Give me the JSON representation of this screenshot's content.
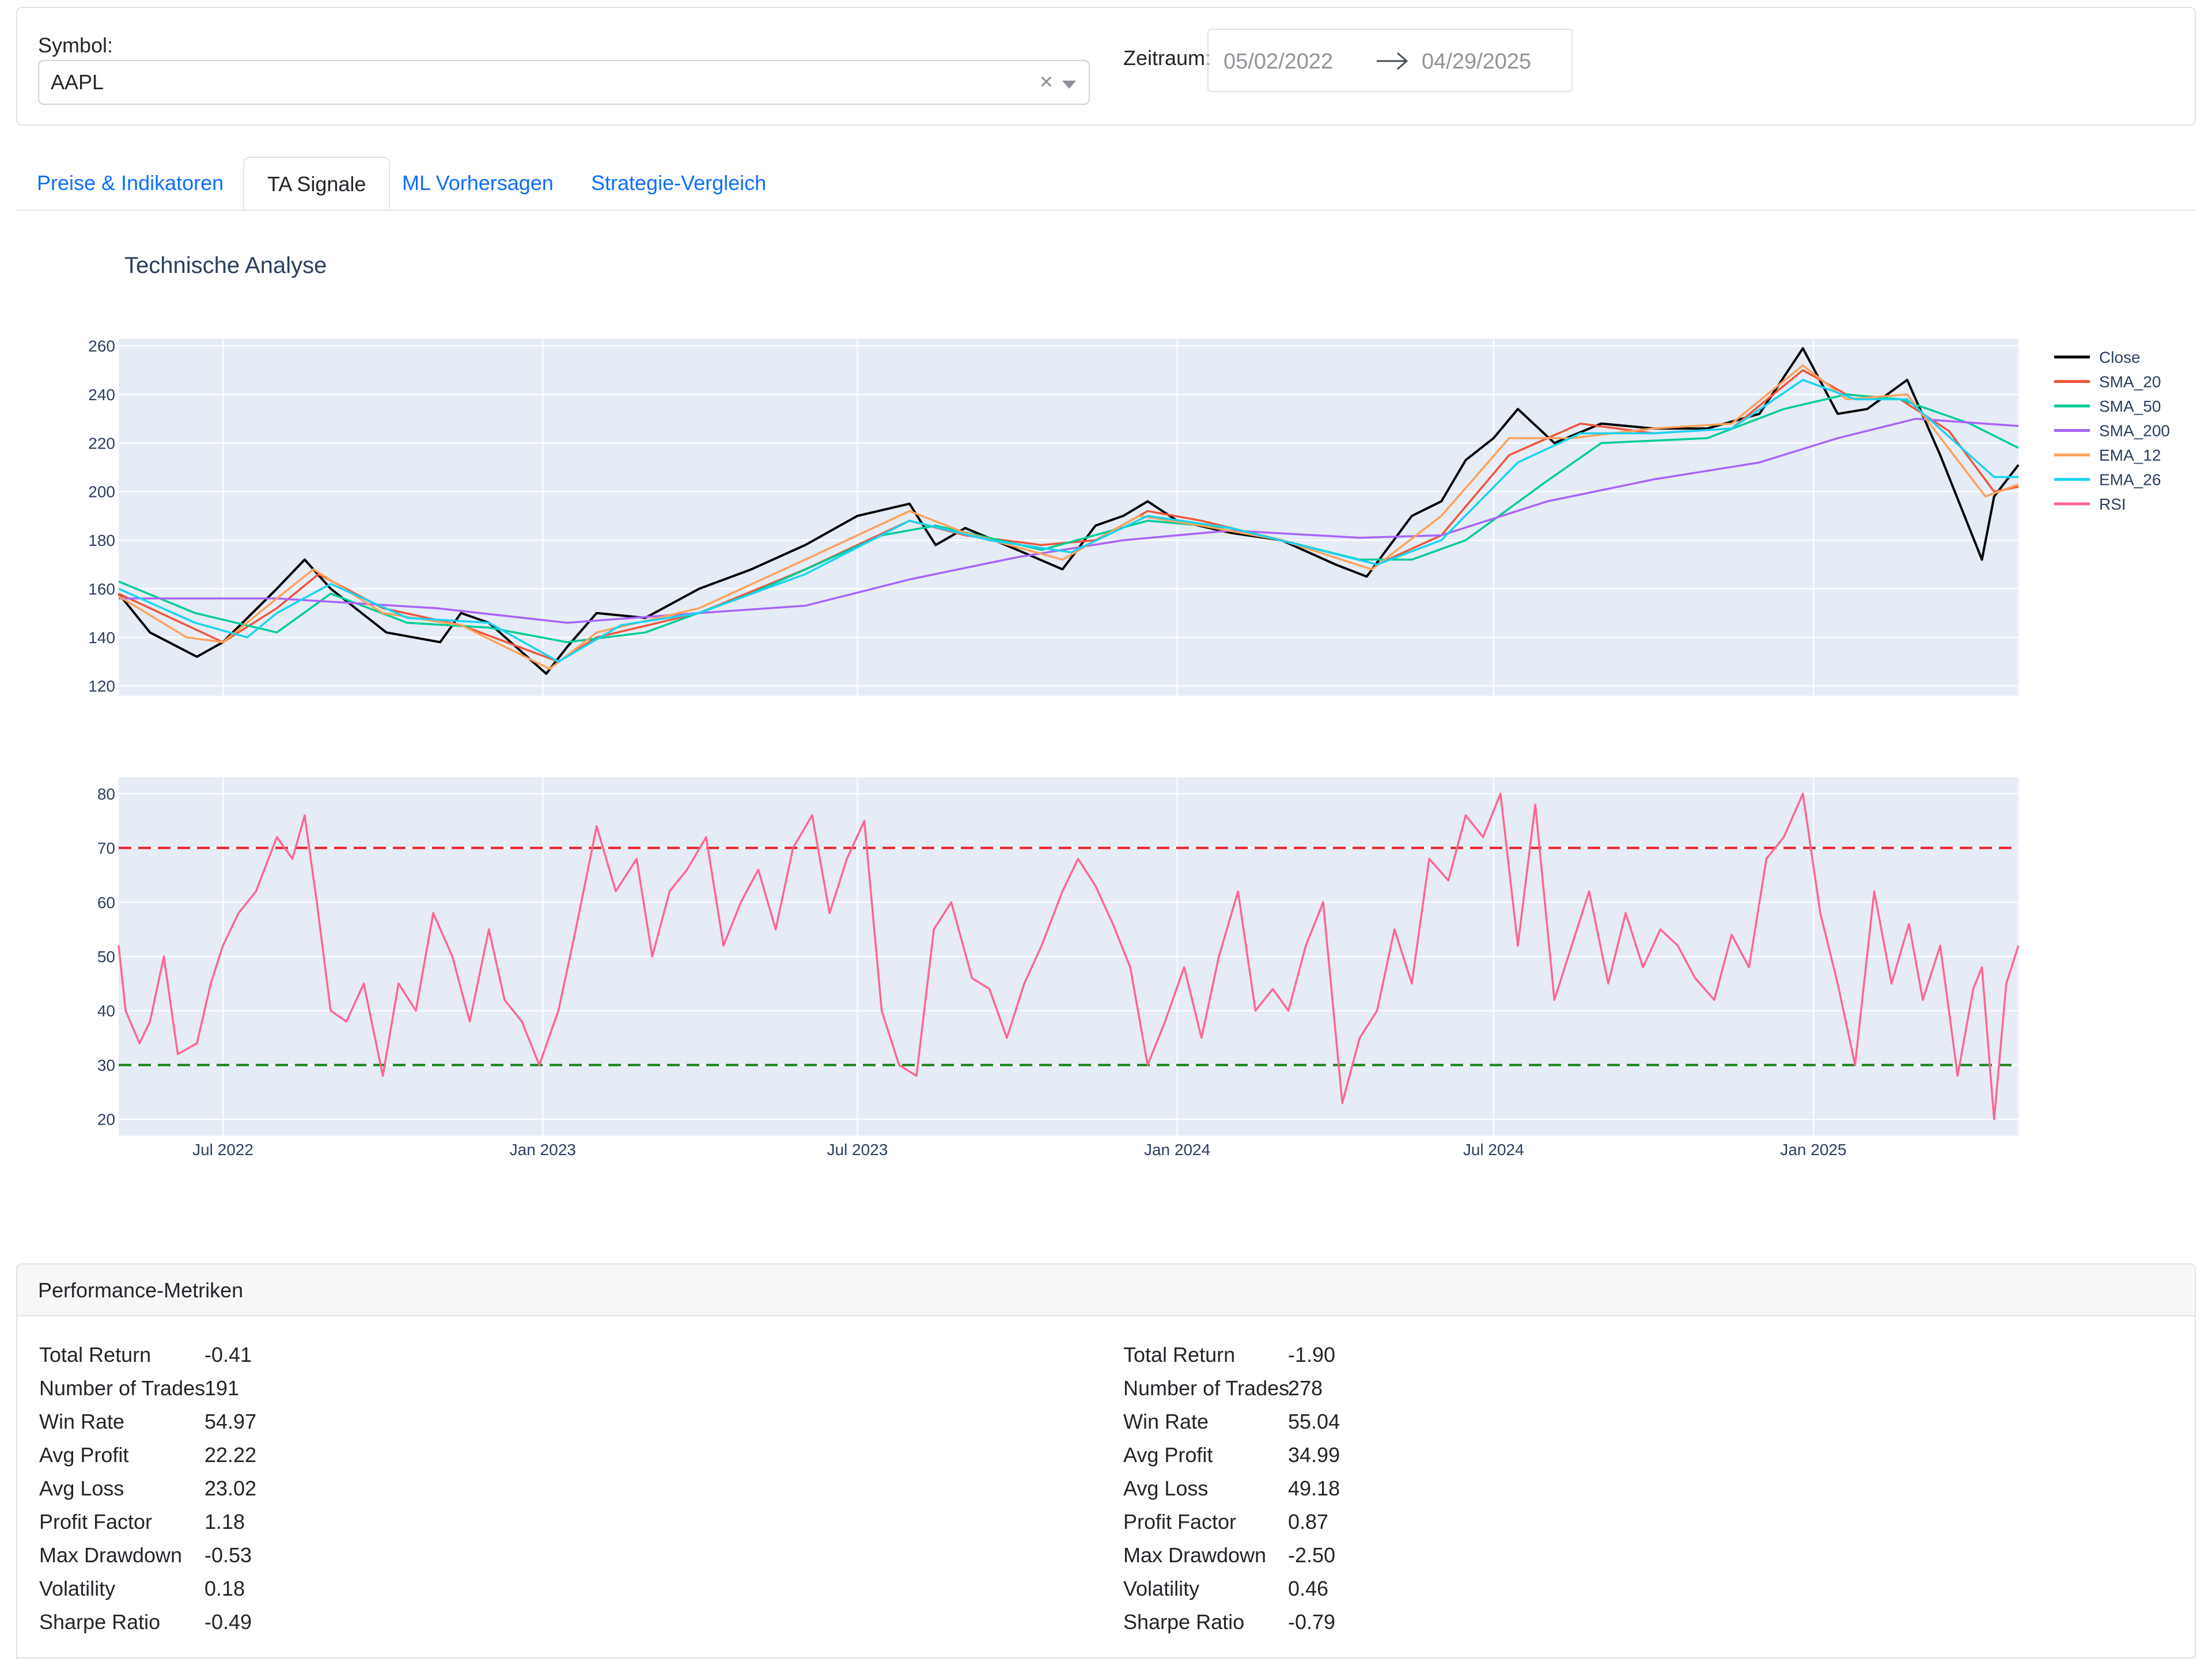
{
  "filters": {
    "symbol_label": "Symbol:",
    "symbol_value": "AAPL",
    "clear_glyph": "×",
    "period_label": "Zeitraum:",
    "start_date": "05/02/2022",
    "end_date": "04/29/2025"
  },
  "tabs": [
    {
      "label": "Preise & Indikatoren",
      "active": false
    },
    {
      "label": "TA Signale",
      "active": true
    },
    {
      "label": "ML Vorhersagen",
      "active": false
    },
    {
      "label": "Strategie-Vergleich",
      "active": false
    }
  ],
  "chart": {
    "title": "Technische Analyse"
  },
  "chart_data": [
    {
      "type": "line",
      "title": "Technische Analyse",
      "ylim": [
        116,
        263
      ],
      "yticks": [
        120,
        140,
        160,
        180,
        200,
        220,
        240,
        260
      ],
      "xlim": [
        "2022-05-02",
        "2025-04-29"
      ],
      "xticks": [
        {
          "date": "2022-07-01",
          "label": "Jul 2022"
        },
        {
          "date": "2023-01-01",
          "label": "Jan 2023"
        },
        {
          "date": "2023-07-01",
          "label": "Jul 2023"
        },
        {
          "date": "2024-01-01",
          "label": "Jan 2024"
        },
        {
          "date": "2024-07-01",
          "label": "Jul 2024"
        },
        {
          "date": "2025-01-01",
          "label": "Jan 2025"
        }
      ],
      "grid": true,
      "legend_position": "right",
      "series": [
        {
          "name": "Close",
          "color": "#000000",
          "x": [
            "2022-05-02",
            "2022-05-20",
            "2022-06-16",
            "2022-07-01",
            "2022-08-01",
            "2022-08-17",
            "2022-09-01",
            "2022-10-03",
            "2022-11-03",
            "2022-11-15",
            "2022-12-01",
            "2023-01-03",
            "2023-01-15",
            "2023-02-01",
            "2023-03-01",
            "2023-04-01",
            "2023-05-01",
            "2023-06-01",
            "2023-07-01",
            "2023-07-31",
            "2023-08-15",
            "2023-09-01",
            "2023-10-01",
            "2023-10-27",
            "2023-11-15",
            "2023-12-01",
            "2023-12-15",
            "2024-01-01",
            "2024-02-01",
            "2024-03-01",
            "2024-04-01",
            "2024-04-19",
            "2024-05-15",
            "2024-06-01",
            "2024-06-15",
            "2024-07-01",
            "2024-07-15",
            "2024-08-05",
            "2024-09-01",
            "2024-10-01",
            "2024-11-01",
            "2024-12-01",
            "2024-12-26",
            "2025-01-15",
            "2025-02-01",
            "2025-02-24",
            "2025-03-15",
            "2025-04-08",
            "2025-04-15",
            "2025-04-29"
          ],
          "y": [
            158,
            142,
            132,
            138,
            160,
            172,
            160,
            142,
            138,
            150,
            146,
            125,
            136,
            150,
            148,
            160,
            168,
            178,
            190,
            195,
            178,
            185,
            176,
            168,
            186,
            190,
            196,
            188,
            183,
            180,
            170,
            165,
            190,
            196,
            213,
            222,
            234,
            220,
            228,
            226,
            226,
            232,
            259,
            232,
            234,
            246,
            215,
            172,
            198,
            211
          ]
        },
        {
          "name": "SMA_20",
          "color": "#ef553b",
          "x": [
            "2022-05-02",
            "2022-06-01",
            "2022-07-01",
            "2022-08-01",
            "2022-08-25",
            "2022-10-01",
            "2022-11-15",
            "2023-01-10",
            "2023-02-01",
            "2023-04-01",
            "2023-06-01",
            "2023-07-31",
            "2023-09-01",
            "2023-10-15",
            "2023-11-15",
            "2023-12-15",
            "2024-01-15",
            "2024-03-01",
            "2024-04-25",
            "2024-06-01",
            "2024-07-10",
            "2024-08-20",
            "2024-10-01",
            "2024-11-15",
            "2024-12-26",
            "2025-01-20",
            "2025-02-20",
            "2025-03-20",
            "2025-04-15",
            "2025-04-29"
          ],
          "y": [
            158,
            148,
            138,
            152,
            166,
            152,
            145,
            130,
            140,
            150,
            168,
            188,
            182,
            178,
            180,
            192,
            188,
            180,
            170,
            182,
            215,
            228,
            224,
            226,
            250,
            240,
            238,
            225,
            200,
            202
          ]
        },
        {
          "name": "SMA_50",
          "color": "#00cc96",
          "x": [
            "2022-05-02",
            "2022-06-15",
            "2022-08-01",
            "2022-09-01",
            "2022-10-15",
            "2022-12-01",
            "2023-01-15",
            "2023-03-01",
            "2023-05-01",
            "2023-07-15",
            "2023-08-15",
            "2023-10-15",
            "2023-12-15",
            "2024-02-01",
            "2024-04-15",
            "2024-05-15",
            "2024-06-15",
            "2024-07-31",
            "2024-09-01",
            "2024-11-01",
            "2024-12-15",
            "2025-01-20",
            "2025-02-20",
            "2025-04-01",
            "2025-04-29"
          ],
          "y": [
            163,
            150,
            142,
            158,
            146,
            144,
            138,
            142,
            158,
            182,
            186,
            176,
            188,
            185,
            172,
            172,
            180,
            204,
            220,
            222,
            234,
            240,
            238,
            228,
            218
          ]
        },
        {
          "name": "SMA_200",
          "color": "#ab63fa",
          "x": [
            "2022-05-02",
            "2022-08-01",
            "2022-11-01",
            "2023-01-15",
            "2023-04-01",
            "2023-06-01",
            "2023-08-01",
            "2023-10-01",
            "2023-12-01",
            "2024-02-01",
            "2024-04-15",
            "2024-06-01",
            "2024-08-01",
            "2024-10-01",
            "2024-12-01",
            "2025-01-15",
            "2025-03-01",
            "2025-04-29"
          ],
          "y": [
            156,
            156,
            152,
            146,
            150,
            153,
            164,
            173,
            180,
            184,
            181,
            182,
            196,
            205,
            212,
            222,
            230,
            227
          ]
        },
        {
          "name": "EMA_12",
          "color": "#ffa15a",
          "x": [
            "2022-05-02",
            "2022-06-10",
            "2022-07-01",
            "2022-08-01",
            "2022-08-22",
            "2022-10-01",
            "2022-11-15",
            "2023-01-05",
            "2023-02-01",
            "2023-04-01",
            "2023-06-01",
            "2023-07-31",
            "2023-09-01",
            "2023-10-27",
            "2023-12-10",
            "2024-01-15",
            "2024-03-01",
            "2024-04-22",
            "2024-06-01",
            "2024-07-10",
            "2024-08-15",
            "2024-10-01",
            "2024-11-15",
            "2024-12-26",
            "2025-01-20",
            "2025-02-24",
            "2025-04-10",
            "2025-04-29"
          ],
          "y": [
            157,
            140,
            138,
            156,
            168,
            150,
            145,
            127,
            142,
            152,
            172,
            192,
            183,
            172,
            190,
            186,
            180,
            168,
            190,
            222,
            222,
            226,
            228,
            252,
            238,
            240,
            198,
            203
          ]
        },
        {
          "name": "EMA_26",
          "color": "#19d3f3",
          "x": [
            "2022-05-02",
            "2022-06-15",
            "2022-07-15",
            "2022-08-01",
            "2022-09-01",
            "2022-10-15",
            "2022-12-01",
            "2023-01-10",
            "2023-02-15",
            "2023-04-01",
            "2023-06-01",
            "2023-07-31",
            "2023-09-15",
            "2023-11-01",
            "2023-12-15",
            "2024-02-01",
            "2024-04-25",
            "2024-06-01",
            "2024-07-15",
            "2024-08-20",
            "2024-10-01",
            "2024-11-15",
            "2024-12-26",
            "2025-01-25",
            "2025-02-24",
            "2025-04-15",
            "2025-04-29"
          ],
          "y": [
            160,
            146,
            140,
            150,
            162,
            148,
            146,
            130,
            145,
            150,
            166,
            188,
            180,
            175,
            190,
            185,
            170,
            180,
            212,
            224,
            224,
            226,
            246,
            238,
            238,
            206,
            206
          ]
        },
        {
          "name": "RSI",
          "color": "#ff6692",
          "x": [],
          "y": []
        }
      ]
    },
    {
      "type": "line",
      "ylim": [
        17,
        83
      ],
      "yticks": [
        20,
        30,
        40,
        50,
        60,
        70,
        80
      ],
      "xlim": [
        "2022-05-02",
        "2025-04-29"
      ],
      "xticks": [
        {
          "date": "2022-07-01",
          "label": "Jul 2022"
        },
        {
          "date": "2023-01-01",
          "label": "Jan 2023"
        },
        {
          "date": "2023-07-01",
          "label": "Jul 2023"
        },
        {
          "date": "2024-01-01",
          "label": "Jan 2024"
        },
        {
          "date": "2024-07-01",
          "label": "Jul 2024"
        },
        {
          "date": "2025-01-01",
          "label": "Jan 2025"
        }
      ],
      "reference_lines": [
        {
          "y": 70,
          "color": "#e8202a",
          "style": "dashed"
        },
        {
          "y": 30,
          "color": "#148214",
          "style": "dashed"
        }
      ],
      "series": [
        {
          "name": "RSI",
          "color": "#ff6692",
          "x": [
            "2022-05-02",
            "2022-05-06",
            "2022-05-14",
            "2022-05-20",
            "2022-05-28",
            "2022-06-05",
            "2022-06-16",
            "2022-06-24",
            "2022-07-01",
            "2022-07-10",
            "2022-07-20",
            "2022-08-01",
            "2022-08-10",
            "2022-08-17",
            "2022-08-24",
            "2022-09-01",
            "2022-09-10",
            "2022-09-20",
            "2022-10-01",
            "2022-10-10",
            "2022-10-20",
            "2022-10-30",
            "2022-11-10",
            "2022-11-20",
            "2022-12-01",
            "2022-12-10",
            "2022-12-20",
            "2022-12-30",
            "2023-01-10",
            "2023-01-20",
            "2023-02-01",
            "2023-02-12",
            "2023-02-24",
            "2023-03-05",
            "2023-03-15",
            "2023-03-25",
            "2023-04-05",
            "2023-04-15",
            "2023-04-25",
            "2023-05-05",
            "2023-05-15",
            "2023-05-25",
            "2023-06-05",
            "2023-06-15",
            "2023-06-25",
            "2023-07-05",
            "2023-07-15",
            "2023-07-25",
            "2023-08-04",
            "2023-08-14",
            "2023-08-24",
            "2023-09-05",
            "2023-09-15",
            "2023-09-25",
            "2023-10-05",
            "2023-10-15",
            "2023-10-27",
            "2023-11-05",
            "2023-11-15",
            "2023-11-25",
            "2023-12-05",
            "2023-12-15",
            "2023-12-25",
            "2024-01-05",
            "2024-01-15",
            "2024-01-25",
            "2024-02-05",
            "2024-02-15",
            "2024-02-25",
            "2024-03-05",
            "2024-03-15",
            "2024-03-25",
            "2024-04-05",
            "2024-04-15",
            "2024-04-25",
            "2024-05-05",
            "2024-05-15",
            "2024-05-25",
            "2024-06-05",
            "2024-06-15",
            "2024-06-25",
            "2024-07-05",
            "2024-07-15",
            "2024-07-25",
            "2024-08-05",
            "2024-08-15",
            "2024-08-25",
            "2024-09-05",
            "2024-09-15",
            "2024-09-25",
            "2024-10-05",
            "2024-10-15",
            "2024-10-25",
            "2024-11-05",
            "2024-11-15",
            "2024-11-25",
            "2024-12-05",
            "2024-12-15",
            "2024-12-26",
            "2025-01-05",
            "2025-01-15",
            "2025-01-25",
            "2025-02-05",
            "2025-02-15",
            "2025-02-25",
            "2025-03-05",
            "2025-03-15",
            "2025-03-25",
            "2025-04-03",
            "2025-04-08",
            "2025-04-15",
            "2025-04-22",
            "2025-04-29"
          ],
          "y": [
            52,
            40,
            34,
            38,
            50,
            32,
            34,
            45,
            52,
            58,
            62,
            72,
            68,
            76,
            60,
            40,
            38,
            45,
            28,
            45,
            40,
            58,
            50,
            38,
            55,
            42,
            38,
            30,
            40,
            55,
            74,
            62,
            68,
            50,
            62,
            66,
            72,
            52,
            60,
            66,
            55,
            70,
            76,
            58,
            68,
            75,
            40,
            30,
            28,
            55,
            60,
            46,
            44,
            35,
            45,
            52,
            62,
            68,
            63,
            56,
            48,
            30,
            38,
            48,
            35,
            50,
            62,
            40,
            44,
            40,
            52,
            60,
            23,
            35,
            40,
            55,
            45,
            68,
            64,
            76,
            72,
            80,
            52,
            78,
            42,
            52,
            62,
            45,
            58,
            48,
            55,
            52,
            46,
            42,
            54,
            48,
            68,
            72,
            80,
            58,
            45,
            30,
            62,
            45,
            56,
            42,
            52,
            28,
            44,
            48,
            20,
            45,
            52
          ]
        }
      ]
    }
  ],
  "legend": [
    {
      "name": "Close",
      "color": "#000000"
    },
    {
      "name": "SMA_20",
      "color": "#ef553b"
    },
    {
      "name": "SMA_50",
      "color": "#00cc96"
    },
    {
      "name": "SMA_200",
      "color": "#ab63fa"
    },
    {
      "name": "EMA_12",
      "color": "#ffa15a"
    },
    {
      "name": "EMA_26",
      "color": "#19d3f3"
    },
    {
      "name": "RSI",
      "color": "#ff6692"
    }
  ],
  "metrics": {
    "header": "Performance-Metriken",
    "columns": [
      [
        {
          "label": "Total Return",
          "value": "-0.41"
        },
        {
          "label": "Number of Trades",
          "value": "191"
        },
        {
          "label": "Win Rate",
          "value": "54.97"
        },
        {
          "label": "Avg Profit",
          "value": "22.22"
        },
        {
          "label": "Avg Loss",
          "value": "23.02"
        },
        {
          "label": "Profit Factor",
          "value": "1.18"
        },
        {
          "label": "Max Drawdown",
          "value": "-0.53"
        },
        {
          "label": "Volatility",
          "value": "0.18"
        },
        {
          "label": "Sharpe Ratio",
          "value": "-0.49"
        }
      ],
      [
        {
          "label": "Total Return",
          "value": "-1.90"
        },
        {
          "label": "Number of Trades",
          "value": "278"
        },
        {
          "label": "Win Rate",
          "value": "55.04"
        },
        {
          "label": "Avg Profit",
          "value": "34.99"
        },
        {
          "label": "Avg Loss",
          "value": "49.18"
        },
        {
          "label": "Profit Factor",
          "value": "0.87"
        },
        {
          "label": "Max Drawdown",
          "value": "-2.50"
        },
        {
          "label": "Volatility",
          "value": "0.46"
        },
        {
          "label": "Sharpe Ratio",
          "value": "-0.79"
        }
      ]
    ]
  }
}
